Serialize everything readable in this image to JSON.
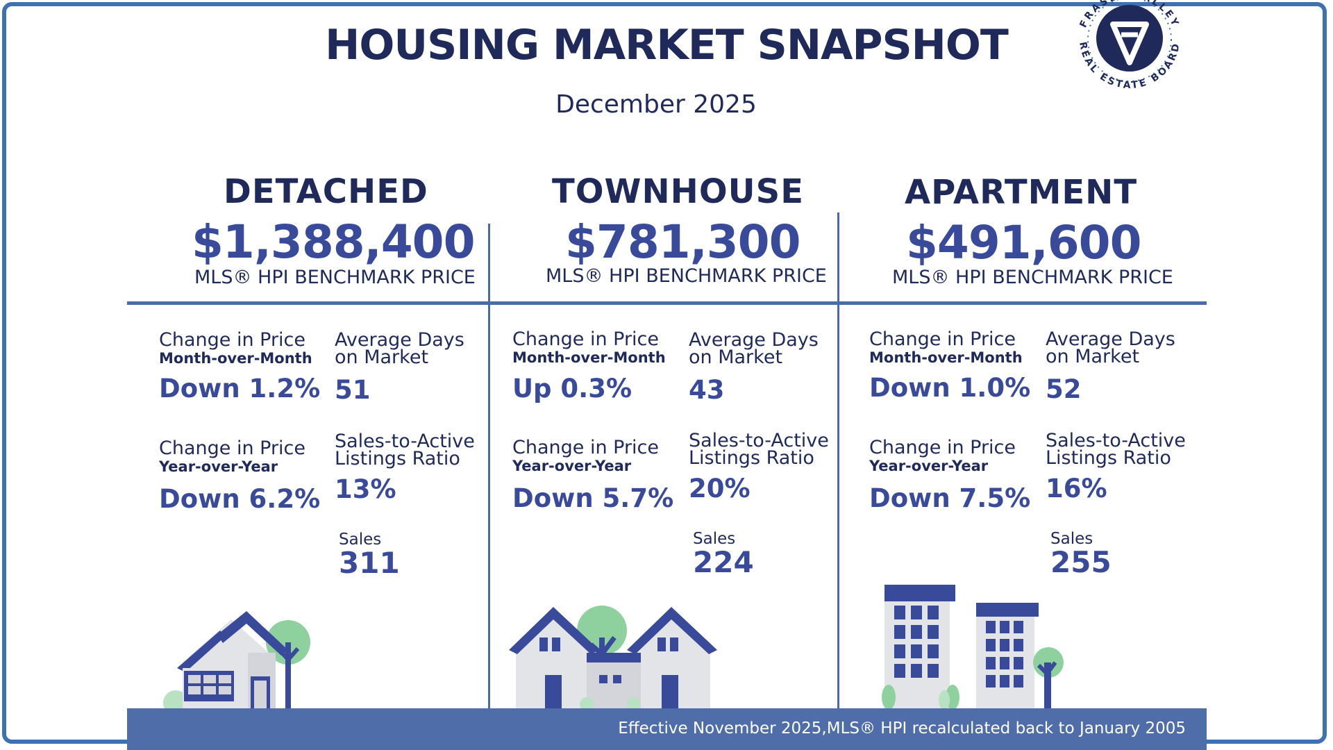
{
  "header": {
    "title": "HOUSING MARKET SNAPSHOT",
    "subtitle": "December 2025"
  },
  "logo": {
    "ring_text_top": "FRASER VALLEY",
    "ring_text_bottom": "REAL ESTATE BOARD",
    "colors": {
      "navy": "#1f2a5a",
      "ring": "#3d71b3"
    }
  },
  "columns": [
    {
      "type": "DETACHED",
      "price": "$1,388,400",
      "price_label": "MLS® HPI BENCHMARK PRICE",
      "mom_label": "Change in Price",
      "mom_sub": "Month-over-Month",
      "mom_value": "Down 1.2%",
      "yoy_label": "Change in Price",
      "yoy_sub": "Year-over-Year",
      "yoy_value": "Down 6.2%",
      "dom_label_1": "Average Days",
      "dom_label_2": "on Market",
      "dom_value": "51",
      "ratio_label_1": "Sales-to-Active",
      "ratio_label_2": "Listings Ratio",
      "ratio_value": "13%",
      "sales_label": "Sales",
      "sales_value": "311"
    },
    {
      "type": "TOWNHOUSE",
      "price": "$781,300",
      "price_label": "MLS® HPI BENCHMARK PRICE",
      "mom_label": "Change in Price",
      "mom_sub": "Month-over-Month",
      "mom_value": "Up 0.3%",
      "yoy_label": "Change in Price",
      "yoy_sub": "Year-over-Year",
      "yoy_value": "Down 5.7%",
      "dom_label_1": "Average Days",
      "dom_label_2": "on Market",
      "dom_value": "43",
      "ratio_label_1": "Sales-to-Active",
      "ratio_label_2": "Listings Ratio",
      "ratio_value": "20%",
      "sales_label": "Sales",
      "sales_value": "224"
    },
    {
      "type": "APARTMENT",
      "price": "$491,600",
      "price_label": "MLS® HPI BENCHMARK PRICE",
      "mom_label": "Change in Price",
      "mom_sub": "Month-over-Month",
      "mom_value": "Down 1.0%",
      "yoy_label": "Change in Price",
      "yoy_sub": "Year-over-Year",
      "yoy_value": "Down 7.5%",
      "dom_label_1": "Average Days",
      "dom_label_2": "on Market",
      "dom_value": "52",
      "ratio_label_1": "Sales-to-Active",
      "ratio_label_2": "Listings Ratio",
      "ratio_value": "16%",
      "sales_label": "Sales",
      "sales_value": "255"
    }
  ],
  "footer": {
    "note": "Effective November 2025,MLS® HPI recalculated back to January 2005"
  },
  "colors": {
    "navy": "#1f2a5a",
    "accent_blue": "#3a4a9a",
    "divider": "#4a6aa8",
    "footer_bg": "#4f6da8",
    "tree_green": "#8fd19e",
    "house_grey": "#e3e4e8"
  }
}
